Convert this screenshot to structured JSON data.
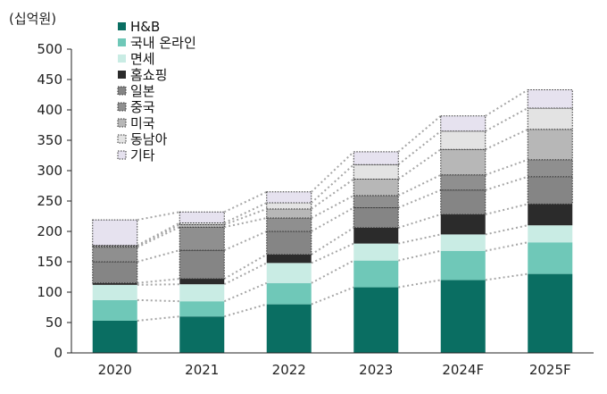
{
  "chart_data": {
    "type": "bar",
    "stacked": true,
    "unit_label": "(십억원)",
    "categories": [
      "2020",
      "2021",
      "2022",
      "2023",
      "2024F",
      "2025F"
    ],
    "ylim": [
      0,
      500
    ],
    "yticks": [
      0,
      50,
      100,
      150,
      200,
      250,
      300,
      350,
      400,
      450,
      500
    ],
    "series": [
      {
        "name": "H&B",
        "color": "#0a6e62",
        "pattern": "solid",
        "values": [
          53,
          60,
          80,
          108,
          120,
          130
        ]
      },
      {
        "name": "국내 온라인",
        "color": "#6fc8b8",
        "pattern": "solid",
        "values": [
          34,
          25,
          35,
          44,
          48,
          52
        ]
      },
      {
        "name": "면세",
        "color": "#c9ece4",
        "pattern": "solid",
        "values": [
          25,
          28,
          33,
          28,
          27,
          28
        ]
      },
      {
        "name": "홈쇼핑",
        "color": "#2b2b2b",
        "pattern": "solid",
        "values": [
          3,
          9,
          14,
          26,
          33,
          35
        ]
      },
      {
        "name": "일본",
        "color": "#858585",
        "pattern": "dotted",
        "values": [
          35,
          47,
          38,
          33,
          40,
          45
        ]
      },
      {
        "name": "중국",
        "color": "#8f8f8f",
        "pattern": "dotted",
        "values": [
          24,
          38,
          22,
          20,
          25,
          28
        ]
      },
      {
        "name": "미국",
        "color": "#b7b7b7",
        "pattern": "dotted",
        "values": [
          2,
          4,
          15,
          27,
          42,
          50
        ]
      },
      {
        "name": "동남아",
        "color": "#e3e3e3",
        "pattern": "dotted",
        "values": [
          1,
          3,
          10,
          24,
          30,
          35
        ]
      },
      {
        "name": "기타",
        "color": "#e6e2ef",
        "pattern": "dotted",
        "values": [
          42,
          18,
          18,
          21,
          25,
          30
        ]
      }
    ]
  }
}
